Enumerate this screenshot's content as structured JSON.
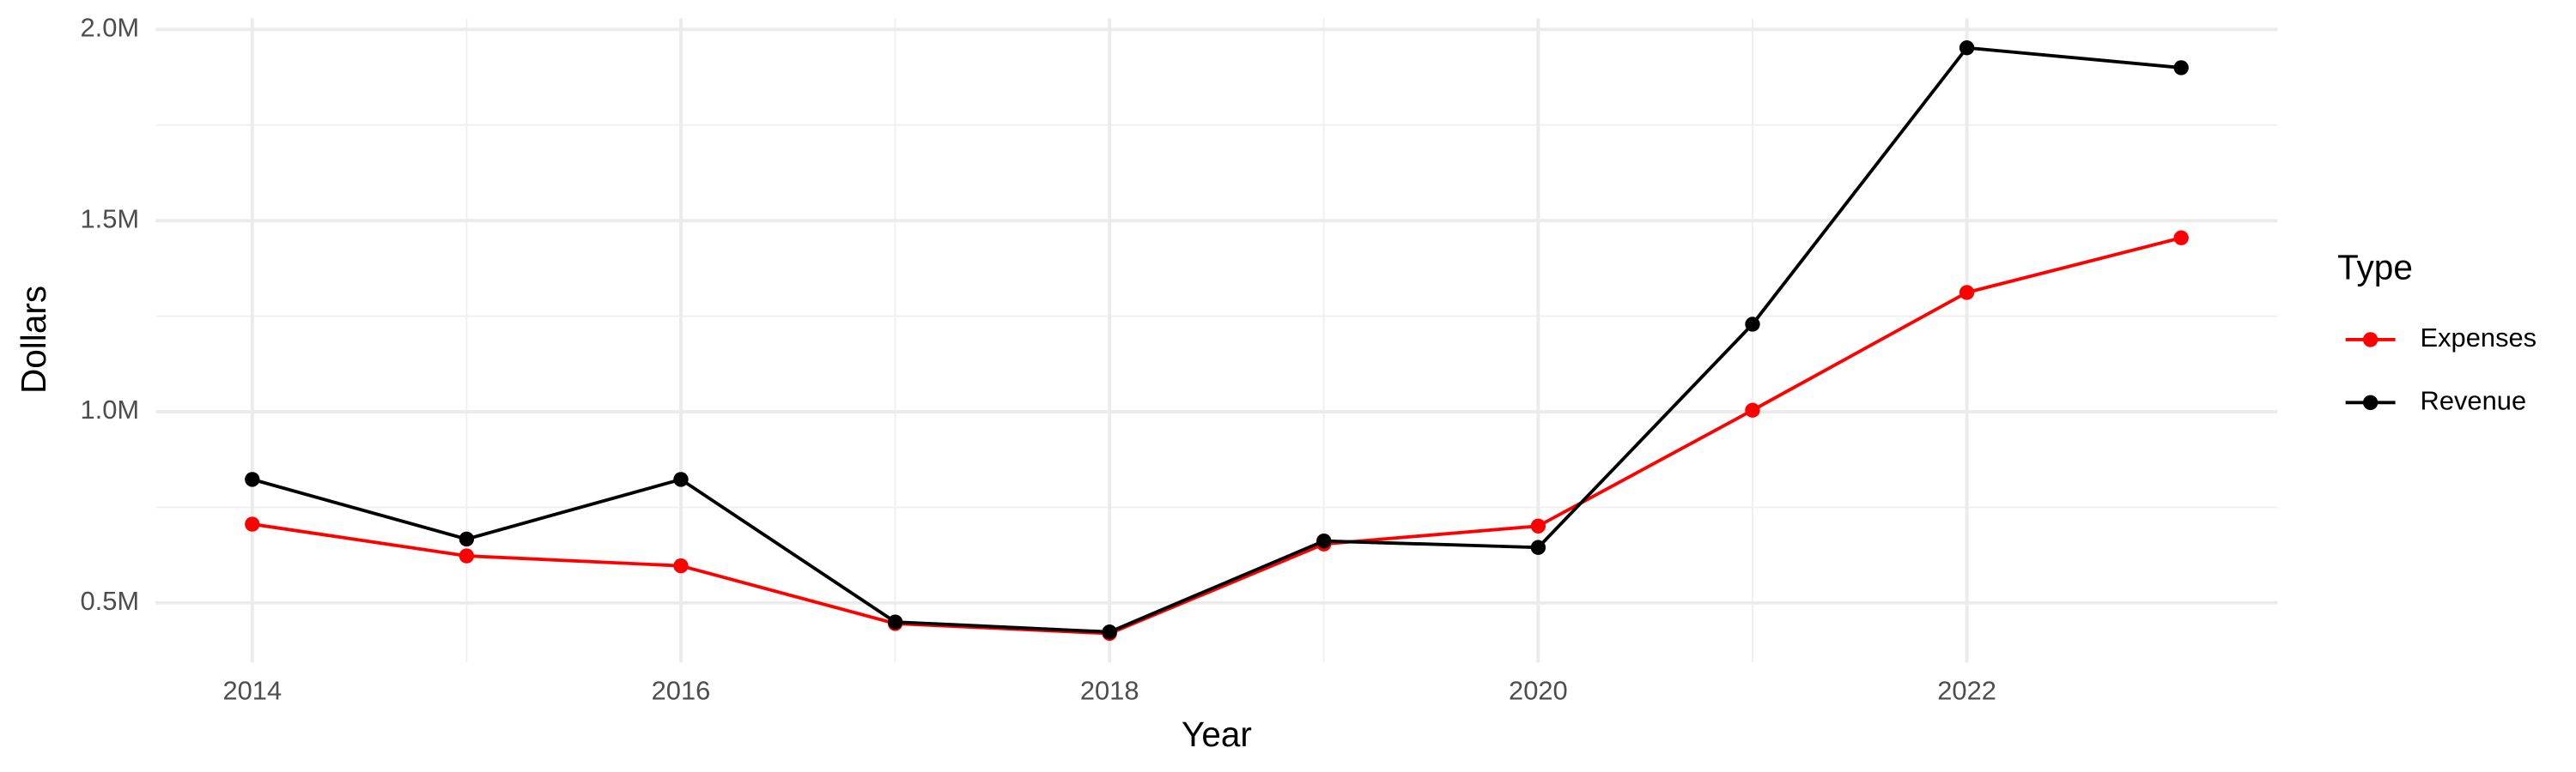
{
  "chart_data": {
    "type": "line",
    "x_label": "Year",
    "y_label": "Dollars",
    "legend_title": "Type",
    "x": [
      2014,
      2015,
      2016,
      2017,
      2018,
      2019,
      2020,
      2021,
      2022,
      2023
    ],
    "series": [
      {
        "name": "Expenses",
        "color": "#ff0000",
        "values": [
          706000,
          623000,
          597000,
          446000,
          420000,
          654000,
          701000,
          1004000,
          1312000,
          1455000
        ]
      },
      {
        "name": "Revenue",
        "color": "#000000",
        "values": [
          823000,
          667000,
          823000,
          450000,
          424000,
          662000,
          645000,
          1229000,
          1952000,
          1900000
        ]
      }
    ],
    "xlim": [
      2013.55,
      2023.45
    ],
    "xticks": [
      2014,
      2016,
      2018,
      2020,
      2022
    ],
    "ylim": [
      344000,
      2029000
    ],
    "yticks": [
      {
        "value": 500000,
        "label": "0.5M"
      },
      {
        "value": 1000000,
        "label": "1.0M"
      },
      {
        "value": 1500000,
        "label": "1.5M"
      },
      {
        "value": 2000000,
        "label": "2.0M"
      }
    ],
    "grid": true,
    "legend": "right"
  }
}
